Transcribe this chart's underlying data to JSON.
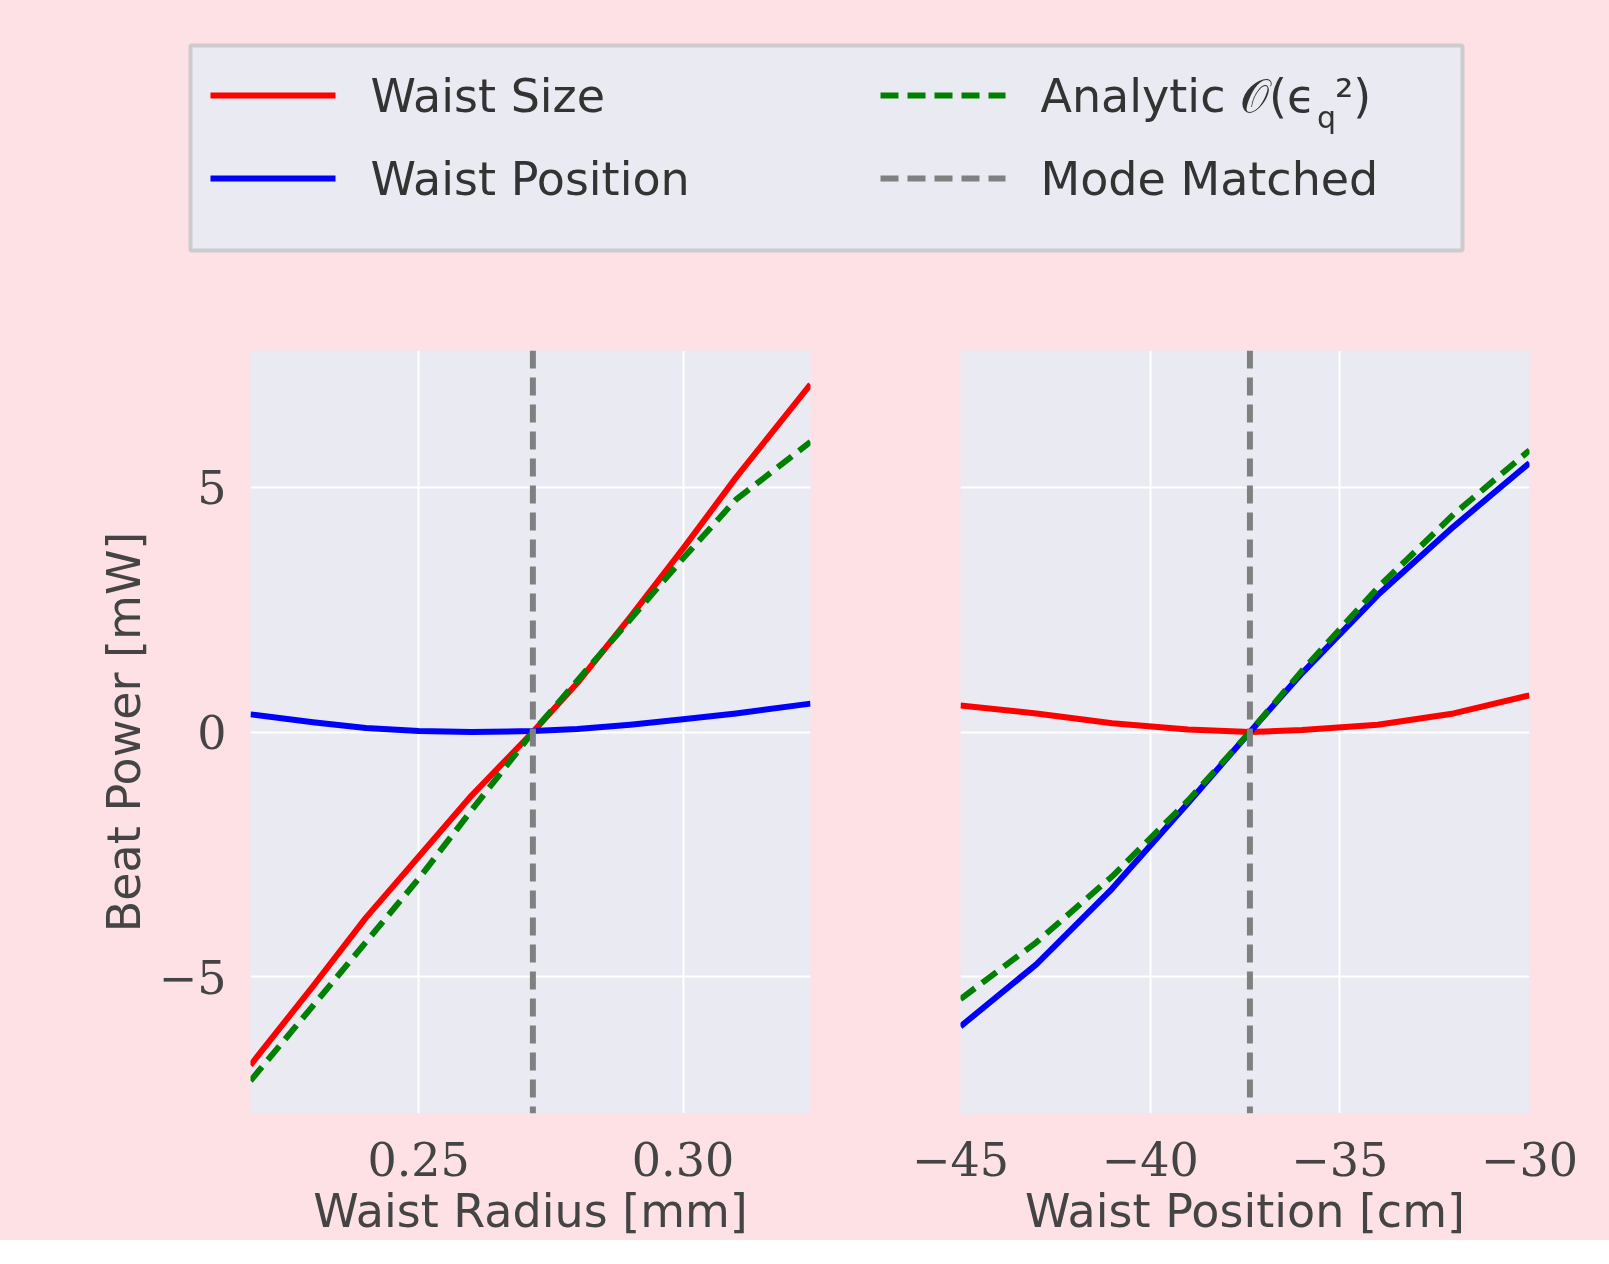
{
  "chart_data": [
    {
      "type": "line",
      "xlabel": "Waist Radius [mm]",
      "ylabel": "Beat Power [mW]",
      "legend": "top",
      "grid": true,
      "line_style": "solid",
      "marker": "none",
      "xlim": [
        0.2182,
        0.3241
      ],
      "ylim": [
        -7.8,
        7.8
      ],
      "xticks": [
        {
          "value": 0.25,
          "label": "0.25"
        },
        {
          "value": 0.3,
          "label": "0.30"
        }
      ],
      "yticks": [
        {
          "value": -5,
          "label": "−5"
        },
        0,
        5
      ],
      "x": [
        0.2182,
        0.23,
        0.24,
        0.25,
        0.26,
        0.2716,
        0.28,
        0.29,
        0.3,
        0.31,
        0.3241
      ],
      "series": [
        {
          "name": "Waist Size",
          "color": "#ff0000",
          "values": [
            -6.81,
            -5.2,
            -3.8,
            -2.55,
            -1.3,
            0,
            1.0,
            2.35,
            3.75,
            5.2,
            7.11
          ]
        },
        {
          "name": "Waist Position",
          "color": "#0000ff",
          "values": [
            0.36,
            0.2,
            0.08,
            0.02,
            0.0,
            0.02,
            0.06,
            0.15,
            0.26,
            0.38,
            0.58
          ]
        },
        {
          "name": "Analytic 𝒪(ϵ$_{q}$²)",
          "color": "#008000",
          "line_style": "dashed",
          "values": [
            -7.13,
            -5.6,
            -4.3,
            -3.0,
            -1.6,
            0,
            1.05,
            2.3,
            3.55,
            4.75,
            5.93
          ]
        }
      ],
      "ref_lines": [
        {
          "axis": "x",
          "value": 0.2716,
          "label": "Mode Matched",
          "color": "#808080",
          "line_style": "dashed"
        }
      ]
    },
    {
      "type": "line",
      "xlabel": "Waist Position [cm]",
      "grid": true,
      "line_style": "solid",
      "marker": "none",
      "tick_labels": "x",
      "xlim": [
        -45,
        -30
      ],
      "ylim": [
        -7.8,
        7.8
      ],
      "xticks": [
        {
          "value": -45,
          "label": "−45"
        },
        {
          "value": -40,
          "label": "−40"
        },
        {
          "value": -35,
          "label": "−35"
        },
        {
          "value": -30,
          "label": "−30"
        }
      ],
      "yticks": [
        -5,
        0,
        5
      ],
      "x": [
        -45,
        -43,
        -41,
        -39,
        -37.37,
        -36,
        -34,
        -32,
        -30
      ],
      "series": [
        {
          "color": "#ff0000",
          "values": [
            0.54,
            0.38,
            0.18,
            0.05,
            0,
            0.04,
            0.15,
            0.38,
            0.75
          ]
        },
        {
          "color": "#0000ff",
          "values": [
            -6.02,
            -4.75,
            -3.2,
            -1.45,
            0,
            1.2,
            2.8,
            4.2,
            5.5
          ]
        },
        {
          "color": "#008000",
          "line_style": "dashed",
          "values": [
            -5.46,
            -4.3,
            -2.95,
            -1.4,
            0,
            1.25,
            2.95,
            4.45,
            5.76
          ]
        }
      ],
      "ref_lines": [
        {
          "axis": "x",
          "value": -37.37,
          "color": "#808080",
          "line_style": "dashed"
        }
      ]
    }
  ]
}
